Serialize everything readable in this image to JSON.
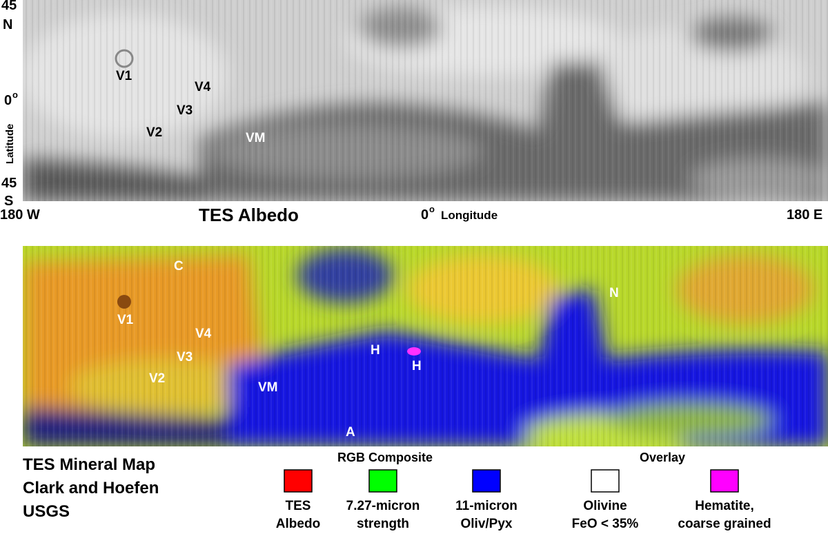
{
  "albedo_map": {
    "title": "TES Albedo",
    "lat_ticks": [
      {
        "num": "45",
        "hem": "N"
      },
      {
        "num": "0",
        "sup": "o"
      },
      {
        "num": "45",
        "hem": "S"
      }
    ],
    "lat_label": "Latitude",
    "lon_ticks": {
      "west": "180 W",
      "center": "0",
      "center_sup": "o",
      "center_label": "Longitude",
      "east": "180 E"
    },
    "sites": [
      "V1",
      "V4",
      "V3",
      "V2",
      "VM"
    ]
  },
  "mineral_map": {
    "sites": [
      "C",
      "V1",
      "V4",
      "V3",
      "V2",
      "VM",
      "H",
      "H",
      "N",
      "A"
    ]
  },
  "legend": {
    "title_lines": [
      "TES Mineral Map",
      "Clark and Hoefen",
      "USGS"
    ],
    "groups": [
      "RGB Composite",
      "Overlay"
    ],
    "items": [
      {
        "color": "#ff0000",
        "lines": [
          "TES",
          "Albedo"
        ]
      },
      {
        "color": "#00ff00",
        "lines": [
          "7.27-micron",
          "strength"
        ]
      },
      {
        "color": "#0000ff",
        "lines": [
          "11-micron",
          "Oliv/Pyx"
        ]
      },
      {
        "color": "#ffffff",
        "lines": [
          "Olivine",
          "FeO < 35%"
        ]
      },
      {
        "color": "#ff00ff",
        "lines": [
          "Hematite,",
          "coarse grained"
        ]
      }
    ]
  }
}
